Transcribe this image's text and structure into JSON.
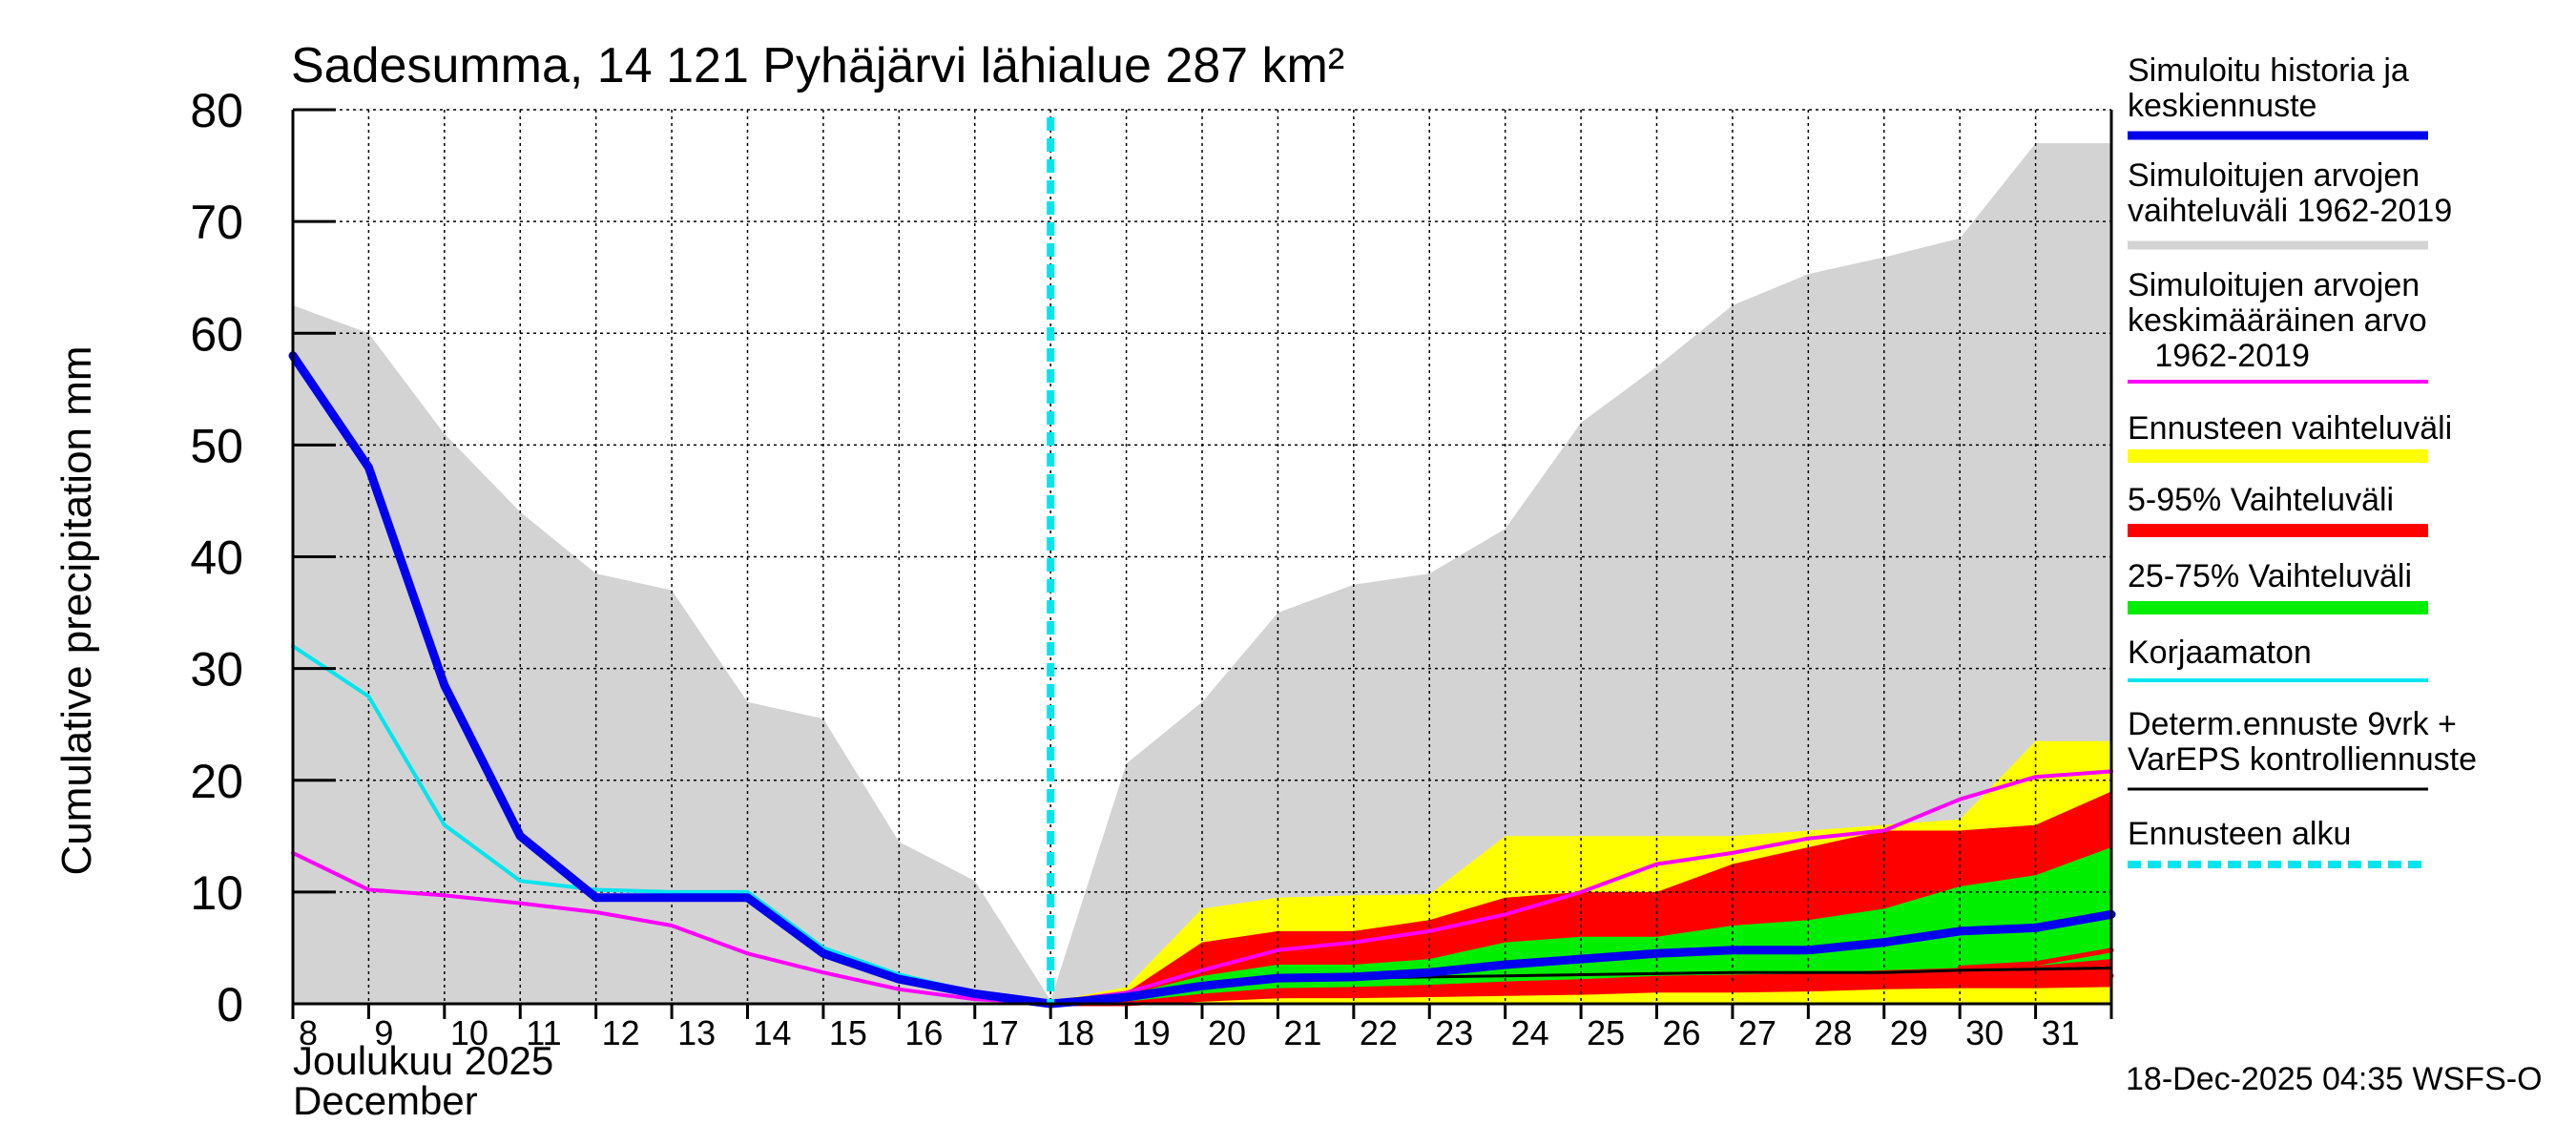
{
  "chart_data": {
    "type": "area",
    "title": "Sadesumma, 14 121 Pyhäjärvi lähialue 287 km²",
    "ylabel": "Cumulative precipitation   mm",
    "xlabel_fi": "Joulukuu  2025",
    "xlabel_en": "December",
    "footer": "18-Dec-2025 04:35 WSFS-O",
    "ylim": [
      0,
      80
    ],
    "yticks": [
      0,
      10,
      20,
      30,
      40,
      50,
      60,
      70,
      80
    ],
    "x_days": [
      8,
      9,
      10,
      11,
      12,
      13,
      14,
      15,
      16,
      17,
      18,
      19,
      20,
      21,
      22,
      23,
      24,
      25,
      26,
      27,
      28,
      29,
      30,
      31,
      32
    ],
    "xtick_labels": [
      "8",
      "9",
      "10",
      "11",
      "12",
      "13",
      "14",
      "15",
      "16",
      "17",
      "18",
      "19",
      "20",
      "21",
      "22",
      "23",
      "24",
      "25",
      "26",
      "27",
      "28",
      "29",
      "30",
      "31"
    ],
    "forecast_start_day": 18,
    "colors": {
      "history_range": "#d3d3d3",
      "forecast_range": "#ffff00",
      "band_5_95": "#ff0000",
      "band_25_75": "#00ee00",
      "simulated": "#0000ee",
      "mean": "#ff00ff",
      "uncorrected": "#00e5ee",
      "determ": "#000000",
      "forecast_start": "#00e5ee",
      "grid": "#000000"
    },
    "series": [
      {
        "name": "history_range_upper",
        "x": [
          8,
          9,
          10,
          11,
          12,
          13,
          14,
          15,
          16,
          17,
          18,
          19,
          20,
          21,
          22,
          23,
          24,
          25,
          26,
          27,
          28,
          29,
          30,
          31,
          32
        ],
        "values": [
          62.5,
          60,
          51,
          44,
          38.5,
          37,
          27,
          25.5,
          14.5,
          11,
          0.3,
          21.5,
          27,
          35,
          37.5,
          38.5,
          42.5,
          52,
          57,
          62.5,
          65.3,
          66.8,
          68.5,
          77,
          77
        ]
      },
      {
        "name": "history_range_lower",
        "x": [
          8,
          18,
          20,
          24,
          28,
          32
        ],
        "values": [
          0,
          0,
          0,
          0,
          0,
          0
        ]
      },
      {
        "name": "forecast_range_upper",
        "x": [
          18,
          19,
          20,
          21,
          22,
          23,
          24,
          25,
          26,
          27,
          28,
          29,
          30,
          31,
          32
        ],
        "values": [
          0.2,
          1.5,
          8.5,
          9.5,
          9.7,
          9.8,
          15,
          15,
          15,
          15,
          15.5,
          16,
          16.5,
          23.5,
          23.5
        ]
      },
      {
        "name": "forecast_range_lower",
        "x": [
          18,
          19,
          20,
          21,
          22,
          23,
          24,
          25,
          26,
          27,
          28,
          29,
          30,
          31,
          32
        ],
        "values": [
          0,
          0,
          0,
          0,
          0,
          0,
          0,
          0,
          0,
          0,
          0,
          0,
          0,
          0,
          0
        ]
      },
      {
        "name": "band_5_95_upper",
        "x": [
          18,
          19,
          20,
          21,
          22,
          23,
          24,
          25,
          26,
          27,
          28,
          29,
          30,
          31,
          32
        ],
        "values": [
          0.2,
          1,
          5.5,
          6.5,
          6.5,
          7.5,
          9.5,
          10,
          10,
          12.5,
          14,
          15.5,
          15.5,
          16,
          19
        ]
      },
      {
        "name": "band_5_95_lower",
        "x": [
          18,
          19,
          20,
          21,
          22,
          23,
          24,
          25,
          26,
          27,
          28,
          29,
          30,
          31,
          32
        ],
        "values": [
          0,
          0,
          0.3,
          0.5,
          0.5,
          0.6,
          0.7,
          0.8,
          1,
          1,
          1.1,
          1.3,
          1.4,
          1.4,
          1.5
        ]
      },
      {
        "name": "band_25_75_upper",
        "x": [
          18,
          19,
          20,
          21,
          22,
          23,
          24,
          25,
          26,
          27,
          28,
          29,
          30,
          31,
          32
        ],
        "values": [
          0.2,
          0.8,
          2.5,
          3.5,
          3.5,
          4,
          5.5,
          6,
          6,
          7,
          7.5,
          8.5,
          10.5,
          11.5,
          14
        ]
      },
      {
        "name": "band_25_75_lower",
        "x": [
          18,
          19,
          20,
          21,
          22,
          23,
          24,
          25,
          26,
          27,
          28,
          29,
          30,
          31,
          32
        ],
        "values": [
          0,
          0.2,
          0.9,
          1.4,
          1.5,
          1.7,
          2,
          2.2,
          2.5,
          2.6,
          2.7,
          3,
          3.2,
          3.4,
          4
        ]
      },
      {
        "name": "Simuloitu historia ja keskiennuste",
        "x": [
          8,
          9,
          10,
          11,
          12,
          13,
          14,
          15,
          16,
          17,
          18,
          19,
          20,
          21,
          22,
          23,
          24,
          25,
          26,
          27,
          28,
          29,
          30,
          31,
          32
        ],
        "values": [
          58,
          48,
          28.5,
          15,
          9.5,
          9.5,
          9.5,
          4.5,
          2.2,
          0.9,
          0,
          0.6,
          1.6,
          2.3,
          2.4,
          2.8,
          3.5,
          4,
          4.5,
          4.8,
          4.8,
          5.5,
          6.5,
          6.8,
          8
        ]
      },
      {
        "name": "Simuloitujen arvojen keskimääräinen arvo 1962-2019",
        "x": [
          8,
          9,
          10,
          11,
          12,
          13,
          14,
          15,
          16,
          17,
          18,
          19,
          20,
          21,
          22,
          23,
          24,
          25,
          26,
          27,
          28,
          29,
          30,
          31,
          32
        ],
        "values": [
          13.5,
          10.2,
          9.7,
          9,
          8.2,
          7,
          4.5,
          2.8,
          1.3,
          0.4,
          0.1,
          1,
          3,
          4.8,
          5.5,
          6.5,
          8,
          10,
          12.5,
          13.5,
          14.8,
          15.5,
          18.3,
          20.3,
          20.8
        ]
      },
      {
        "name": "Korjaamaton",
        "x": [
          8,
          9,
          10,
          11,
          12,
          13,
          14,
          15,
          16,
          17,
          18
        ],
        "values": [
          32,
          27.5,
          16,
          11,
          10.2,
          10,
          10,
          5,
          2.6,
          1,
          0
        ]
      },
      {
        "name": "Determ.ennuste 9vrk + VarEPS kontrolliennuste",
        "x": [
          18,
          19,
          20,
          21,
          22,
          23,
          24,
          25,
          26,
          27,
          28,
          29,
          30,
          31,
          32
        ],
        "values": [
          0,
          0.5,
          1.5,
          2.3,
          2.3,
          2.4,
          2.5,
          2.6,
          2.7,
          2.8,
          2.8,
          2.8,
          3,
          3.1,
          3.2
        ]
      },
      {
        "name": "red_low_line",
        "x": [
          18,
          19,
          20,
          21,
          22,
          23,
          24,
          25,
          26,
          27,
          28,
          29,
          30,
          31,
          32
        ],
        "values": [
          0,
          0,
          0.4,
          0.7,
          0.8,
          1,
          1.1,
          1.3,
          1.4,
          1.6,
          1.7,
          2,
          2.2,
          2.4,
          2.5
        ]
      },
      {
        "name": "red_top_ribbon",
        "x": [
          30,
          31,
          32
        ],
        "values": [
          3.2,
          3.6,
          4.8
        ]
      }
    ],
    "legend": [
      {
        "label": "Simuloitu historia ja\nkeskiennuste",
        "kind": "line",
        "color": "#0000ee",
        "width": 9
      },
      {
        "label": "Simuloitujen arvojen\nvaihteluväli 1962-2019",
        "kind": "band",
        "color": "#d3d3d3",
        "width": 9
      },
      {
        "label": "Simuloitujen arvojen\nkeskimääräinen arvo\n   1962-2019",
        "kind": "line",
        "color": "#ff00ff",
        "width": 4
      },
      {
        "label": "Ennusteen vaihteluväli",
        "kind": "band",
        "color": "#ffff00",
        "width": 14
      },
      {
        "label": "5-95% Vaihteluväli",
        "kind": "band",
        "color": "#ff0000",
        "width": 14
      },
      {
        "label": "25-75% Vaihteluväli",
        "kind": "band",
        "color": "#00ee00",
        "width": 14
      },
      {
        "label": "Korjaamaton",
        "kind": "line",
        "color": "#00e5ee",
        "width": 4
      },
      {
        "label": "Determ.ennuste 9vrk +\nVarEPS kontrolliennuste",
        "kind": "line",
        "color": "#000000",
        "width": 3
      },
      {
        "label": "Ennusteen alku",
        "kind": "dashed",
        "color": "#00e5ee",
        "width": 8
      }
    ]
  }
}
